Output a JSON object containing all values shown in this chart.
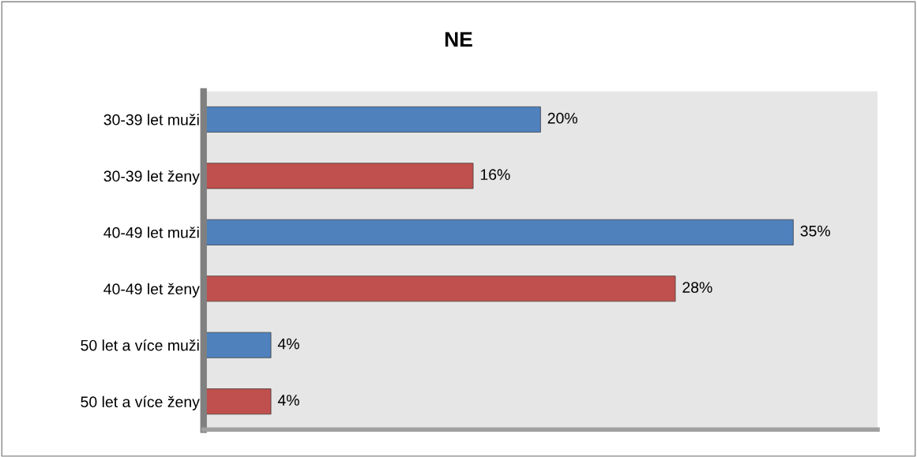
{
  "chart_data": {
    "type": "bar",
    "orientation": "horizontal",
    "title": "NE",
    "categories": [
      "30-39 let muži",
      "30-39 let ženy",
      "40-49 let muži",
      "40-49 let ženy",
      "50 let a více muži",
      "50 let a více ženy"
    ],
    "values": [
      20,
      16,
      35,
      28,
      4,
      4
    ],
    "value_labels": [
      "20%",
      "16%",
      "35%",
      "28%",
      "4%",
      "4%"
    ],
    "colors": [
      "#4f81bd",
      "#c0504d",
      "#4f81bd",
      "#c0504d",
      "#4f81bd",
      "#c0504d"
    ],
    "xlim": [
      0,
      40
    ],
    "tick_labels": "y",
    "grid": false,
    "legend": false
  }
}
